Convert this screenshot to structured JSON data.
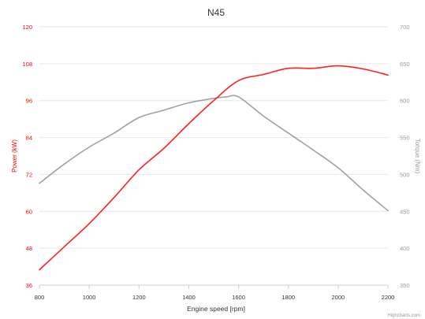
{
  "chart_data": {
    "type": "line",
    "title": "N45",
    "xlabel": "Engine speed [rpm]",
    "x_ticks": [
      800,
      1000,
      1200,
      1400,
      1600,
      1800,
      2000,
      2200
    ],
    "xlim": [
      800,
      2200
    ],
    "y_left": {
      "label": "Power (kW)",
      "ticks": [
        36,
        48,
        60,
        72,
        84,
        96,
        108,
        120
      ],
      "ylim": [
        36,
        120
      ],
      "color": "#ff0000"
    },
    "y_right": {
      "label": "Torque (Nm)",
      "ticks": [
        350,
        400,
        450,
        500,
        550,
        600,
        650,
        700
      ],
      "ylim": [
        350,
        700
      ],
      "color": "#999999"
    },
    "series": [
      {
        "axis": "left",
        "color": "#ff2020",
        "x": [
          800,
          900,
          1000,
          1100,
          1200,
          1300,
          1400,
          1500,
          1600,
          1700,
          1800,
          1900,
          2000,
          2100,
          2200
        ],
        "values": [
          41,
          48.5,
          56,
          64.5,
          73.5,
          80.5,
          88.5,
          96,
          102.5,
          104.5,
          106.5,
          106.5,
          107.3,
          106.3,
          104.3
        ]
      },
      {
        "axis": "right",
        "color": "#a0a0a0",
        "x": [
          800,
          900,
          1000,
          1100,
          1200,
          1300,
          1400,
          1500,
          1550,
          1600,
          1700,
          1800,
          1900,
          2000,
          2100,
          2200
        ],
        "values": [
          488,
          514,
          537,
          556,
          577,
          587,
          597,
          603,
          605,
          605,
          579,
          556,
          533,
          509,
          479,
          451
        ]
      }
    ],
    "grid": true,
    "legend": "none"
  },
  "credit": "Highcharts.com"
}
